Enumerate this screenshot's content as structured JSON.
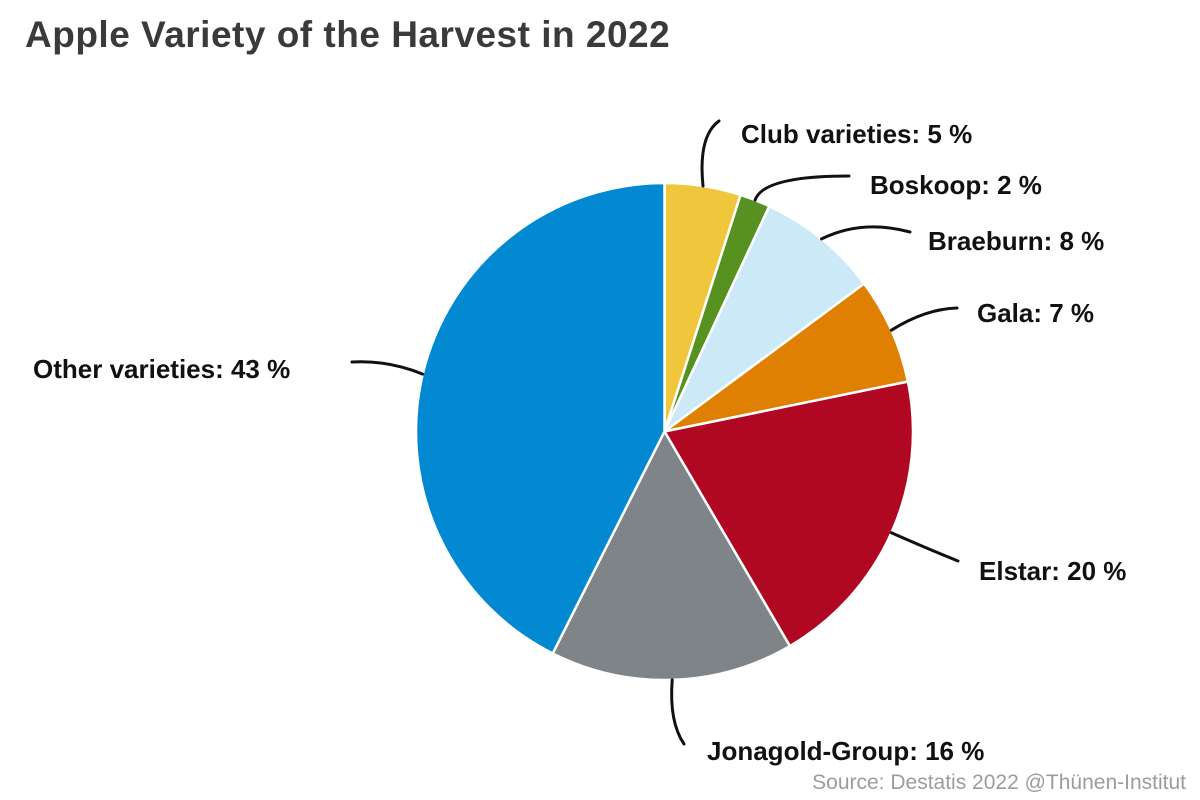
{
  "title": "Apple Variety of the Harvest in 2022",
  "source": "Source: Destatis 2022 @Thünen-Institut",
  "colors": {
    "background": "#ffffff",
    "title_text": "#3a3a3a",
    "label_text": "#111111",
    "leader_line": "#111111",
    "slice_border": "#ffffff",
    "source_text": "#9c9c9c"
  },
  "chart_data": {
    "type": "pie",
    "title": "Apple Variety of the Harvest in 2022",
    "legend": "none",
    "annotation_style": "leader-lines",
    "start_angle": "12-o'clock",
    "direction": "clockwise",
    "label_format": "{label}: {value} %",
    "slices": [
      {
        "label": "Club varieties",
        "value": 5,
        "unit": "%",
        "color": "#efc63c"
      },
      {
        "label": "Boskoop",
        "value": 2,
        "unit": "%",
        "color": "#579120"
      },
      {
        "label": "Braeburn",
        "value": 8,
        "unit": "%",
        "color": "#cbe9f7"
      },
      {
        "label": "Gala",
        "value": 7,
        "unit": "%",
        "color": "#e08002"
      },
      {
        "label": "Elstar",
        "value": 20,
        "unit": "%",
        "color": "#b00823"
      },
      {
        "label": "Jonagold-Group",
        "value": 16,
        "unit": "%",
        "color": "#7e8487"
      },
      {
        "label": "Other varieties",
        "value": 43,
        "unit": "%",
        "color": "#0289d2"
      }
    ]
  }
}
